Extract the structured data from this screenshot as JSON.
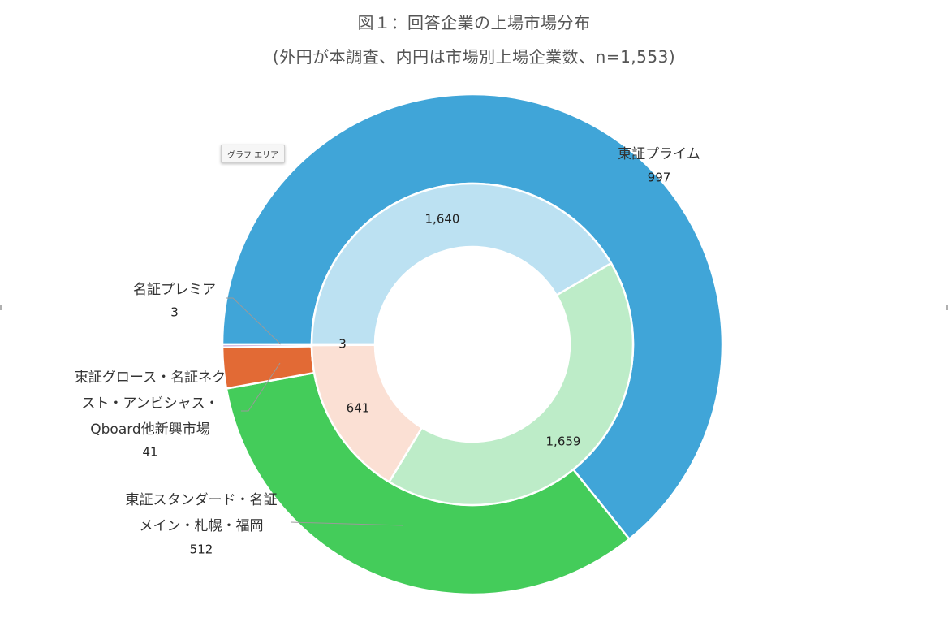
{
  "title": "図１：回答企業の上場市場分布",
  "subtitle": "(外円が本調査、内円は市場別上場企業数、n=1,553)",
  "chart_area_tag": "グラフ エリア",
  "chart_data": {
    "type": "donut",
    "title": "図１：回答企業の上場市場分布",
    "subtitle": "(外円が本調査、内円は市場別上場企業数、n=1,553)",
    "start_angle": "9 o'clock, clockwise",
    "rings": [
      {
        "ring": "outer",
        "slices": [
          {
            "label_lines": [
              "東証プライム"
            ],
            "value": 997,
            "value_text": "997",
            "color": "#40A5D8"
          },
          {
            "label_lines": [
              "東証スタンダード・名証",
              "メイン・札幌・福岡"
            ],
            "value": 512,
            "value_text": "512",
            "color": "#44CC5A"
          },
          {
            "label_lines": [
              "東証グロース・名証ネク",
              "スト・アンビシャス・",
              "Qboard他新興市場"
            ],
            "value": 41,
            "value_text": "41",
            "color": "#E26A35"
          },
          {
            "label_lines": [
              "名証プレミア"
            ],
            "value": 3,
            "value_text": "3",
            "color": "#C7A7D8"
          }
        ]
      },
      {
        "ring": "inner",
        "slices": [
          {
            "value": 1640,
            "value_text": "1,640",
            "color": "#BCE1F2"
          },
          {
            "value": 1659,
            "value_text": "1,659",
            "color": "#BDECC8"
          },
          {
            "value": 641,
            "value_text": "641",
            "color": "#FBE0D4"
          },
          {
            "value": 3,
            "value_text": "3",
            "color": "#E8DDF0"
          }
        ]
      }
    ]
  }
}
